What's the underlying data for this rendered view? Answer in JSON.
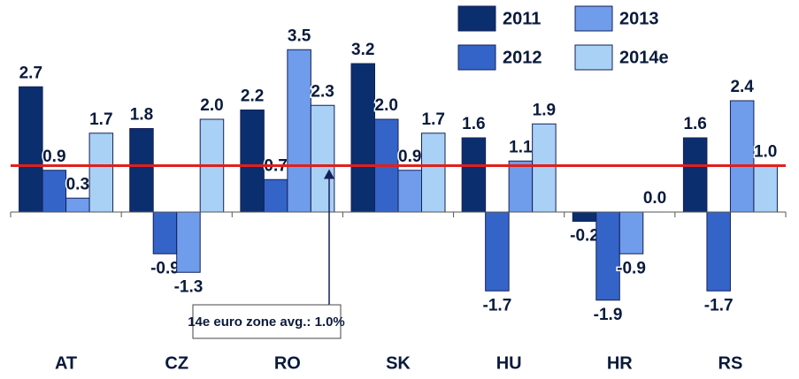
{
  "chart_data": {
    "type": "bar",
    "categories": [
      "AT",
      "CZ",
      "RO",
      "SK",
      "HU",
      "HR",
      "RS"
    ],
    "series": [
      {
        "name": "2011",
        "color": "#0b2f6e",
        "values": [
          2.7,
          1.8,
          2.2,
          3.2,
          1.6,
          -0.2,
          1.6
        ],
        "value_labels": [
          "2.7",
          "1.8",
          "2.2",
          "3.2",
          "1.6",
          "-0.2",
          "1.6"
        ]
      },
      {
        "name": "2012",
        "color": "#3464c8",
        "values": [
          0.9,
          -0.9,
          0.7,
          2.0,
          -1.7,
          -1.9,
          -1.7
        ],
        "value_labels": [
          "0.9",
          "-0.9",
          "0.7",
          "2.0",
          "-1.7",
          "-1.9",
          "-1.7"
        ]
      },
      {
        "name": "2013",
        "color": "#6f9ceb",
        "values": [
          0.3,
          -1.3,
          3.5,
          0.9,
          1.1,
          -0.9,
          2.4
        ],
        "value_labels": [
          "0.3",
          "-1.3",
          "3.5",
          "0.9",
          "1.1",
          "-0.9",
          "2.4"
        ]
      },
      {
        "name": "2014e",
        "color": "#a9d0f5",
        "values": [
          1.7,
          2.0,
          2.3,
          1.7,
          1.9,
          0.0,
          1.0
        ],
        "value_labels": [
          "1.7",
          "2.0",
          "2.3",
          "1.7",
          "1.9",
          "0.0",
          "1.0"
        ]
      }
    ],
    "reference_line": {
      "value": 1.0,
      "label": "14e euro zone avg.: 1.0%",
      "color": "#e0201c"
    },
    "ylim": [
      -2.4,
      4.0
    ]
  }
}
